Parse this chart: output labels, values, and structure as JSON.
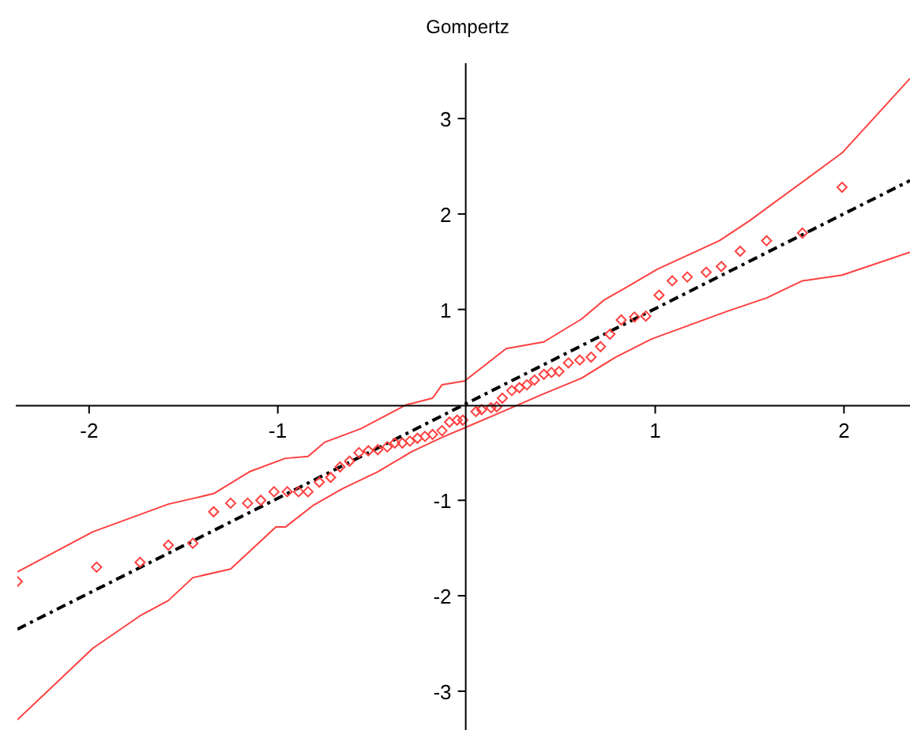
{
  "chart_data": {
    "type": "scatter",
    "title": "Gompertz",
    "xlim": [
      -2.38,
      2.35
    ],
    "ylim": [
      -3.39,
      3.58
    ],
    "xticks": [
      -2,
      -1,
      1,
      2
    ],
    "yticks": [
      -3,
      -2,
      -1,
      1,
      2,
      3
    ],
    "marker": "diamond",
    "series": [
      {
        "color": "#ff4040",
        "x": [
          -2.38,
          -1.96,
          -1.73,
          -1.58,
          -1.45,
          -1.34,
          -1.25,
          -1.16,
          -1.09,
          -1.02,
          -0.95,
          -0.89,
          -0.84,
          -0.78,
          -0.72,
          -0.67,
          -0.62,
          -0.57,
          -0.52,
          -0.47,
          -0.42,
          -0.38,
          -0.34,
          -0.3,
          -0.26,
          -0.22,
          -0.18,
          -0.13,
          -0.09,
          -0.05,
          -0.02,
          0.05,
          0.08,
          0.13,
          0.16,
          0.19,
          0.24,
          0.28,
          0.32,
          0.36,
          0.41,
          0.45,
          0.49,
          0.54,
          0.6,
          0.66,
          0.71,
          0.76,
          0.82,
          0.89,
          0.95,
          1.02,
          1.09,
          1.17,
          1.27,
          1.35,
          1.45,
          1.59,
          1.78,
          1.99
        ],
        "values": [
          -1.85,
          -1.7,
          -1.65,
          -1.47,
          -1.45,
          -1.12,
          -1.03,
          -1.03,
          -1.0,
          -0.91,
          -0.91,
          -0.91,
          -0.91,
          -0.81,
          -0.76,
          -0.65,
          -0.59,
          -0.5,
          -0.48,
          -0.47,
          -0.44,
          -0.4,
          -0.4,
          -0.38,
          -0.35,
          -0.33,
          -0.31,
          -0.27,
          -0.18,
          -0.16,
          -0.16,
          -0.07,
          -0.05,
          -0.03,
          -0.02,
          0.07,
          0.15,
          0.18,
          0.21,
          0.26,
          0.32,
          0.34,
          0.35,
          0.44,
          0.47,
          0.5,
          0.61,
          0.74,
          0.89,
          0.92,
          0.93,
          1.15,
          1.3,
          1.34,
          1.39,
          1.45,
          1.61,
          1.72,
          1.8,
          2.28
        ]
      },
      {
        "type": "line",
        "color": "#000000",
        "line_style": "dashed",
        "marker": "none",
        "x": [
          -2.38,
          2.35
        ],
        "values": [
          -2.35,
          2.35
        ]
      },
      {
        "type": "line",
        "color": "#ff4040",
        "line_style": "solid",
        "marker": "none",
        "x": [
          -2.38,
          -1.98,
          -1.58,
          -1.34,
          -1.15,
          -0.96,
          -0.84,
          -0.75,
          -0.56,
          -0.32,
          -0.18,
          -0.13,
          -0.01,
          0.21,
          0.41,
          0.61,
          0.73,
          0.88,
          1.01,
          1.34,
          1.5,
          1.99,
          2.35
        ],
        "values": [
          -1.75,
          -1.33,
          -1.04,
          -0.93,
          -0.7,
          -0.56,
          -0.54,
          -0.39,
          -0.25,
          0.0,
          0.07,
          0.21,
          0.25,
          0.59,
          0.66,
          0.9,
          1.1,
          1.27,
          1.42,
          1.72,
          1.93,
          2.64,
          3.42
        ]
      },
      {
        "type": "line",
        "color": "#ff4040",
        "line_style": "solid",
        "marker": "none",
        "x": [
          -2.38,
          -1.98,
          -1.73,
          -1.58,
          -1.45,
          -1.25,
          -1.01,
          -0.96,
          -0.81,
          -0.66,
          -0.47,
          -0.29,
          -0.13,
          -0.01,
          0.18,
          0.39,
          0.61,
          0.79,
          0.98,
          1.16,
          1.38,
          1.59,
          1.78,
          1.99,
          2.35
        ],
        "values": [
          -3.3,
          -2.55,
          -2.21,
          -2.05,
          -1.81,
          -1.72,
          -1.28,
          -1.28,
          -1.05,
          -0.88,
          -0.7,
          -0.49,
          -0.34,
          -0.24,
          -0.08,
          0.1,
          0.28,
          0.5,
          0.69,
          0.82,
          0.98,
          1.12,
          1.3,
          1.36,
          1.6
        ]
      }
    ]
  }
}
